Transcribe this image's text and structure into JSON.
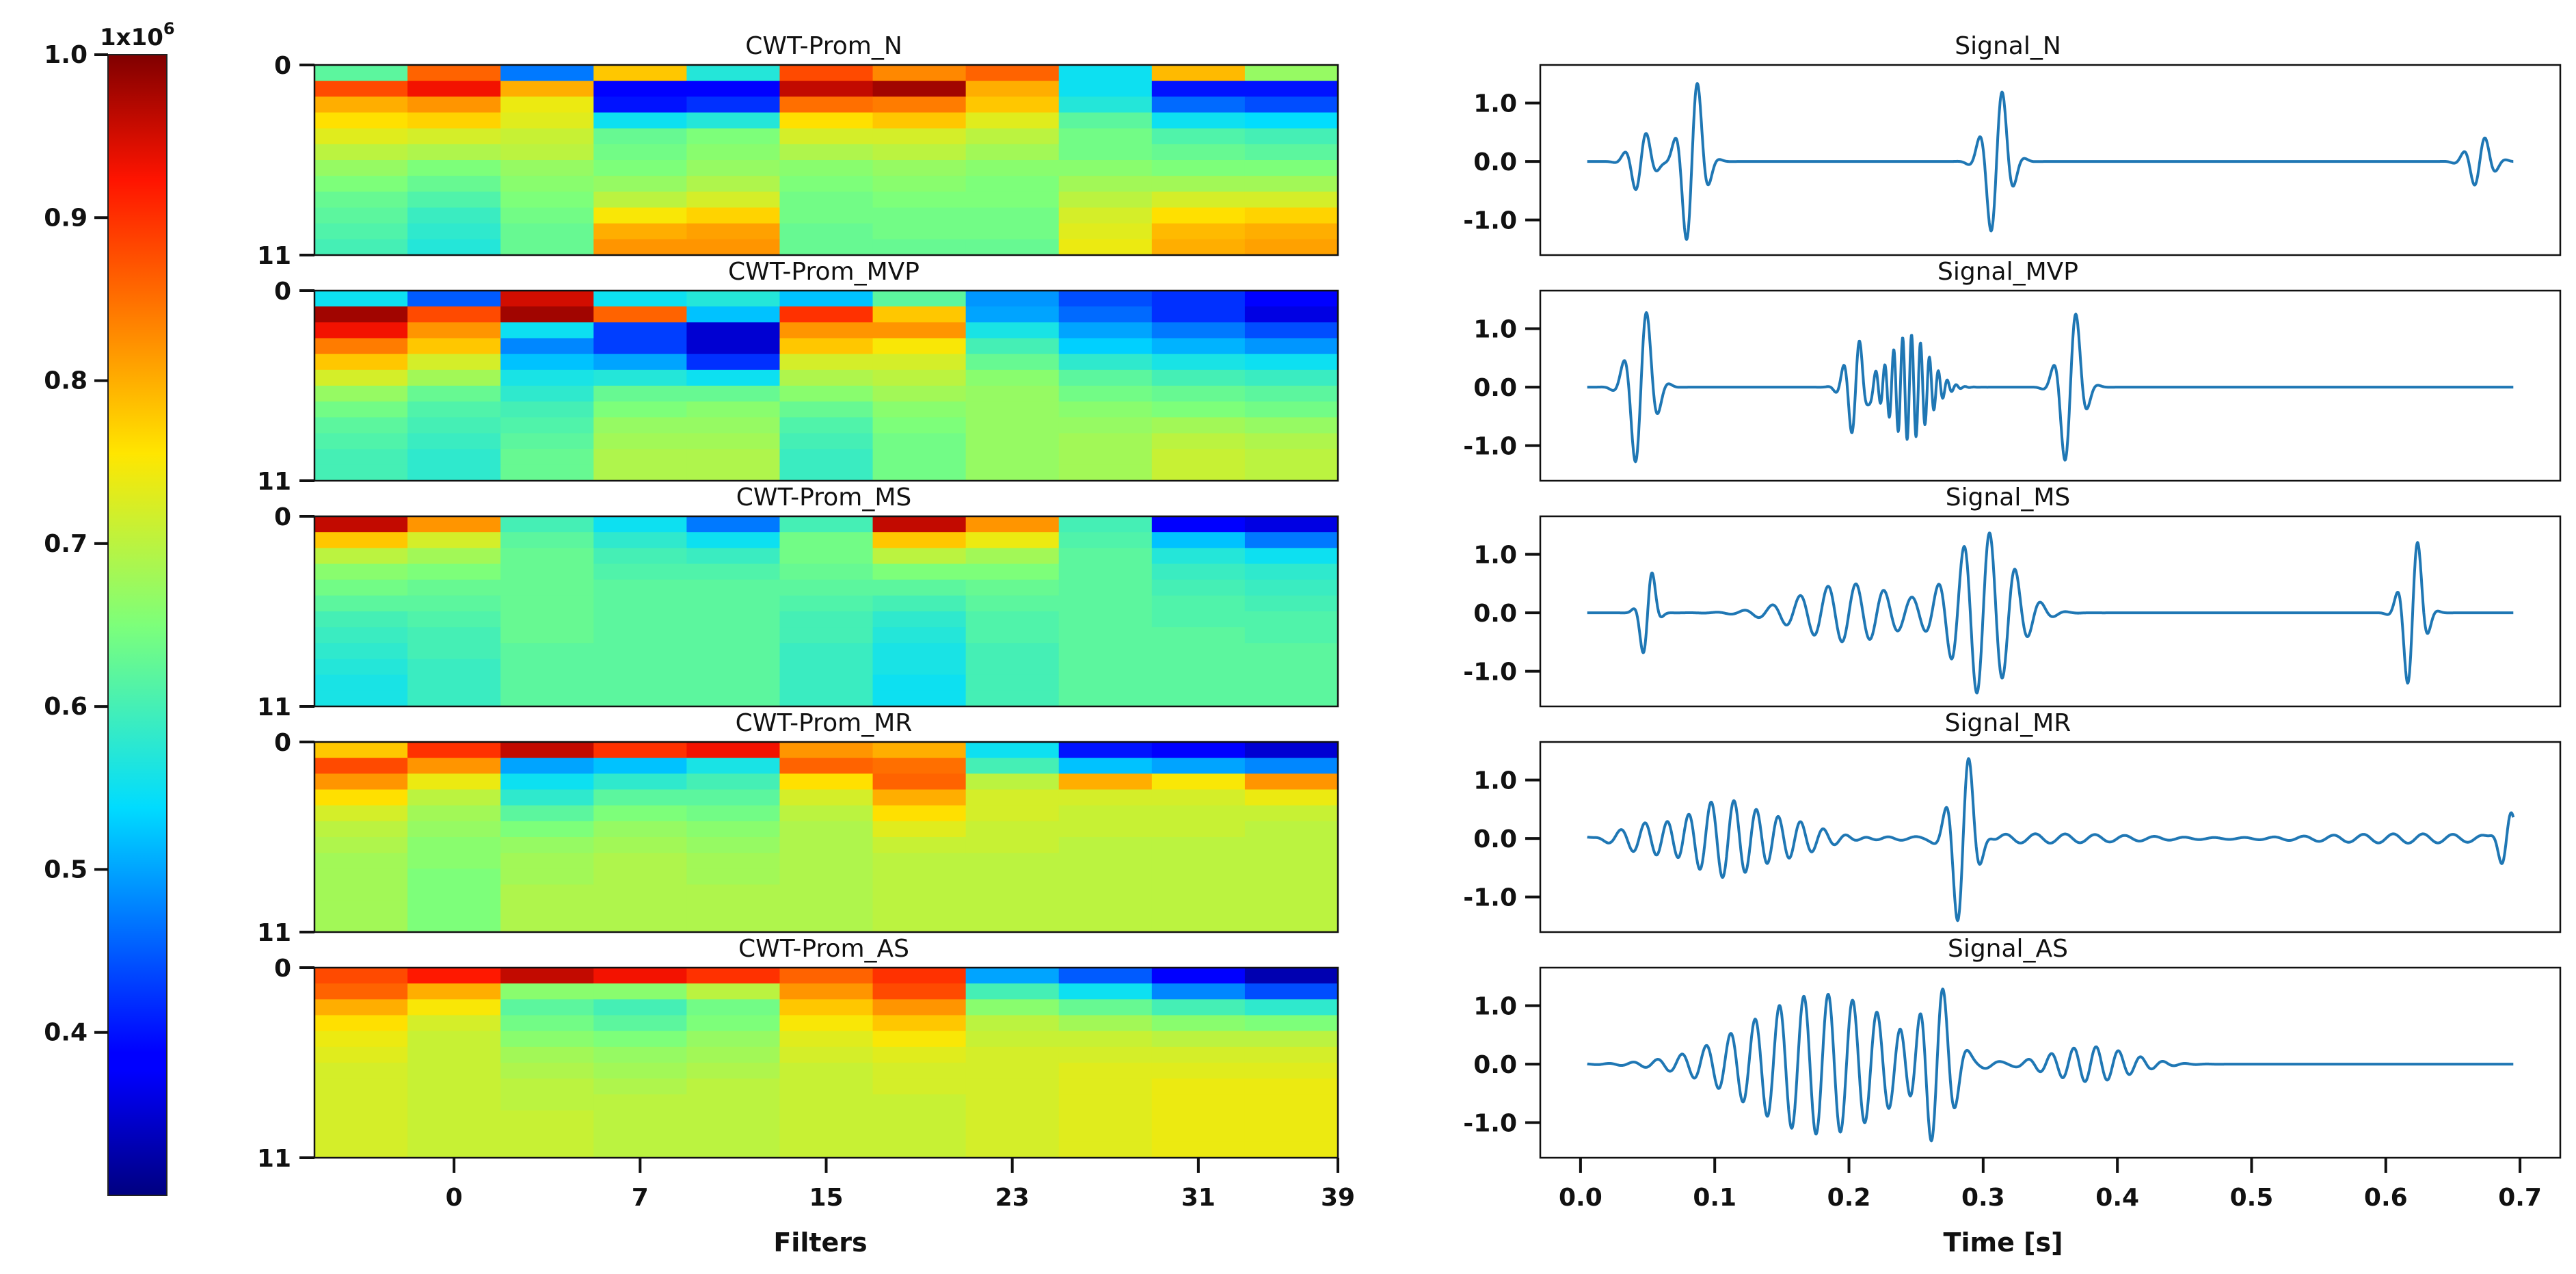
{
  "chart_data": {
    "type": "heatmap",
    "colormap": "jet",
    "colorbar": {
      "min": 0.3,
      "max": 1.0,
      "ticks": [
        "1.0",
        "0.9",
        "0.8",
        "0.7",
        "0.6",
        "0.5",
        "0.4"
      ],
      "tick_values": [
        1.0,
        0.9,
        0.8,
        0.7,
        0.6,
        0.5,
        0.4
      ],
      "multiplier": "1x10",
      "exponent": "6"
    },
    "heatmaps": {
      "xlabel": "Filters",
      "xticks": [
        "0",
        "7",
        "15",
        "23",
        "31",
        "39"
      ],
      "xtick_positions": [
        1.5,
        3.5,
        5.5,
        7.5,
        9.5,
        11.0
      ],
      "yticks": [
        "0",
        "11"
      ],
      "rows": 12,
      "cols": 11,
      "panels": [
        {
          "title": "CWT-Prom_N",
          "values": [
            [
              0.62,
              0.86,
              0.47,
              0.78,
              0.57,
              0.88,
              0.83,
              0.86,
              0.55,
              0.79,
              0.67
            ],
            [
              0.88,
              0.93,
              0.8,
              0.38,
              0.38,
              0.96,
              0.98,
              0.8,
              0.55,
              0.4,
              0.4
            ],
            [
              0.8,
              0.82,
              0.74,
              0.4,
              0.42,
              0.85,
              0.84,
              0.78,
              0.57,
              0.46,
              0.44
            ],
            [
              0.76,
              0.77,
              0.73,
              0.55,
              0.57,
              0.76,
              0.78,
              0.73,
              0.62,
              0.55,
              0.54
            ],
            [
              0.73,
              0.72,
              0.71,
              0.63,
              0.65,
              0.72,
              0.72,
              0.7,
              0.64,
              0.61,
              0.6
            ],
            [
              0.7,
              0.69,
              0.7,
              0.64,
              0.66,
              0.69,
              0.7,
              0.68,
              0.64,
              0.63,
              0.62
            ],
            [
              0.67,
              0.65,
              0.67,
              0.65,
              0.67,
              0.66,
              0.67,
              0.66,
              0.66,
              0.65,
              0.65
            ],
            [
              0.65,
              0.63,
              0.66,
              0.67,
              0.69,
              0.65,
              0.66,
              0.65,
              0.68,
              0.68,
              0.68
            ],
            [
              0.63,
              0.61,
              0.65,
              0.7,
              0.72,
              0.64,
              0.65,
              0.65,
              0.7,
              0.72,
              0.72
            ],
            [
              0.62,
              0.59,
              0.64,
              0.75,
              0.77,
              0.64,
              0.64,
              0.64,
              0.72,
              0.76,
              0.77
            ],
            [
              0.61,
              0.58,
              0.63,
              0.8,
              0.81,
              0.63,
              0.64,
              0.64,
              0.73,
              0.79,
              0.8
            ],
            [
              0.6,
              0.57,
              0.63,
              0.82,
              0.82,
              0.63,
              0.63,
              0.63,
              0.74,
              0.8,
              0.81
            ]
          ]
        },
        {
          "title": "CWT-Prom_MVP",
          "values": [
            [
              0.55,
              0.45,
              0.95,
              0.55,
              0.57,
              0.52,
              0.62,
              0.49,
              0.44,
              0.42,
              0.38
            ],
            [
              0.98,
              0.88,
              0.98,
              0.86,
              0.52,
              0.9,
              0.78,
              0.5,
              0.46,
              0.42,
              0.36
            ],
            [
              0.93,
              0.82,
              0.55,
              0.43,
              0.35,
              0.82,
              0.82,
              0.56,
              0.5,
              0.47,
              0.44
            ],
            [
              0.84,
              0.78,
              0.48,
              0.43,
              0.35,
              0.78,
              0.75,
              0.6,
              0.53,
              0.51,
              0.49
            ],
            [
              0.78,
              0.72,
              0.52,
              0.5,
              0.42,
              0.72,
              0.72,
              0.63,
              0.58,
              0.56,
              0.55
            ],
            [
              0.72,
              0.68,
              0.56,
              0.57,
              0.55,
              0.69,
              0.7,
              0.66,
              0.62,
              0.6,
              0.59
            ],
            [
              0.67,
              0.63,
              0.58,
              0.63,
              0.63,
              0.66,
              0.68,
              0.67,
              0.64,
              0.63,
              0.62
            ],
            [
              0.64,
              0.61,
              0.6,
              0.65,
              0.66,
              0.63,
              0.66,
              0.67,
              0.66,
              0.65,
              0.64
            ],
            [
              0.62,
              0.6,
              0.61,
              0.67,
              0.67,
              0.61,
              0.65,
              0.67,
              0.67,
              0.68,
              0.67
            ],
            [
              0.61,
              0.59,
              0.62,
              0.68,
              0.68,
              0.6,
              0.64,
              0.67,
              0.68,
              0.7,
              0.69
            ],
            [
              0.6,
              0.58,
              0.63,
              0.69,
              0.69,
              0.59,
              0.64,
              0.67,
              0.68,
              0.71,
              0.7
            ],
            [
              0.6,
              0.58,
              0.63,
              0.69,
              0.69,
              0.59,
              0.64,
              0.67,
              0.68,
              0.71,
              0.7
            ]
          ]
        },
        {
          "title": "CWT-Prom_MS",
          "values": [
            [
              0.96,
              0.82,
              0.6,
              0.55,
              0.47,
              0.6,
              0.96,
              0.82,
              0.6,
              0.38,
              0.36
            ],
            [
              0.78,
              0.72,
              0.62,
              0.58,
              0.55,
              0.64,
              0.78,
              0.74,
              0.61,
              0.52,
              0.47
            ],
            [
              0.7,
              0.68,
              0.63,
              0.6,
              0.59,
              0.64,
              0.7,
              0.68,
              0.62,
              0.57,
              0.55
            ],
            [
              0.66,
              0.65,
              0.63,
              0.61,
              0.61,
              0.63,
              0.65,
              0.65,
              0.62,
              0.59,
              0.58
            ],
            [
              0.64,
              0.63,
              0.63,
              0.62,
              0.62,
              0.62,
              0.62,
              0.63,
              0.62,
              0.6,
              0.59
            ],
            [
              0.62,
              0.62,
              0.63,
              0.62,
              0.62,
              0.61,
              0.6,
              0.62,
              0.62,
              0.61,
              0.6
            ],
            [
              0.6,
              0.61,
              0.63,
              0.62,
              0.62,
              0.6,
              0.58,
              0.61,
              0.62,
              0.61,
              0.61
            ],
            [
              0.59,
              0.6,
              0.63,
              0.62,
              0.62,
              0.6,
              0.57,
              0.61,
              0.62,
              0.62,
              0.61
            ],
            [
              0.58,
              0.6,
              0.62,
              0.62,
              0.62,
              0.59,
              0.56,
              0.6,
              0.62,
              0.62,
              0.62
            ],
            [
              0.57,
              0.59,
              0.62,
              0.62,
              0.62,
              0.59,
              0.56,
              0.6,
              0.62,
              0.62,
              0.62
            ],
            [
              0.56,
              0.59,
              0.62,
              0.62,
              0.62,
              0.59,
              0.55,
              0.6,
              0.62,
              0.62,
              0.62
            ],
            [
              0.56,
              0.59,
              0.62,
              0.62,
              0.62,
              0.59,
              0.55,
              0.6,
              0.62,
              0.62,
              0.62
            ]
          ]
        },
        {
          "title": "CWT-Prom_MR",
          "values": [
            [
              0.78,
              0.9,
              0.96,
              0.9,
              0.93,
              0.82,
              0.8,
              0.55,
              0.4,
              0.38,
              0.35
            ],
            [
              0.88,
              0.82,
              0.5,
              0.52,
              0.56,
              0.86,
              0.85,
              0.6,
              0.52,
              0.5,
              0.48
            ],
            [
              0.82,
              0.74,
              0.55,
              0.58,
              0.6,
              0.76,
              0.86,
              0.7,
              0.8,
              0.75,
              0.82
            ],
            [
              0.76,
              0.7,
              0.58,
              0.62,
              0.62,
              0.72,
              0.8,
              0.72,
              0.72,
              0.72,
              0.74
            ],
            [
              0.72,
              0.68,
              0.62,
              0.65,
              0.64,
              0.7,
              0.76,
              0.72,
              0.71,
              0.71,
              0.71
            ],
            [
              0.7,
              0.67,
              0.65,
              0.67,
              0.66,
              0.69,
              0.73,
              0.71,
              0.71,
              0.71,
              0.7
            ],
            [
              0.69,
              0.66,
              0.67,
              0.68,
              0.67,
              0.69,
              0.71,
              0.71,
              0.7,
              0.7,
              0.7
            ],
            [
              0.68,
              0.66,
              0.68,
              0.69,
              0.68,
              0.69,
              0.7,
              0.7,
              0.7,
              0.7,
              0.7
            ],
            [
              0.68,
              0.65,
              0.68,
              0.69,
              0.68,
              0.69,
              0.7,
              0.7,
              0.7,
              0.7,
              0.7
            ],
            [
              0.68,
              0.65,
              0.69,
              0.69,
              0.69,
              0.69,
              0.7,
              0.7,
              0.7,
              0.7,
              0.7
            ],
            [
              0.68,
              0.65,
              0.69,
              0.69,
              0.69,
              0.69,
              0.7,
              0.7,
              0.7,
              0.7,
              0.7
            ],
            [
              0.68,
              0.65,
              0.69,
              0.69,
              0.69,
              0.69,
              0.7,
              0.7,
              0.7,
              0.7,
              0.7
            ]
          ]
        },
        {
          "title": "CWT-Prom_AS",
          "values": [
            [
              0.88,
              0.92,
              0.96,
              0.93,
              0.9,
              0.86,
              0.9,
              0.5,
              0.45,
              0.38,
              0.33
            ],
            [
              0.86,
              0.8,
              0.66,
              0.66,
              0.7,
              0.82,
              0.88,
              0.6,
              0.55,
              0.48,
              0.44
            ],
            [
              0.8,
              0.75,
              0.62,
              0.6,
              0.64,
              0.78,
              0.82,
              0.66,
              0.63,
              0.6,
              0.58
            ],
            [
              0.76,
              0.72,
              0.64,
              0.62,
              0.65,
              0.75,
              0.78,
              0.7,
              0.68,
              0.66,
              0.65
            ],
            [
              0.74,
              0.71,
              0.66,
              0.65,
              0.67,
              0.73,
              0.75,
              0.71,
              0.71,
              0.7,
              0.7
            ],
            [
              0.73,
              0.71,
              0.68,
              0.67,
              0.68,
              0.72,
              0.73,
              0.72,
              0.72,
              0.72,
              0.72
            ],
            [
              0.72,
              0.71,
              0.69,
              0.68,
              0.69,
              0.71,
              0.72,
              0.72,
              0.73,
              0.73,
              0.73
            ],
            [
              0.72,
              0.71,
              0.7,
              0.69,
              0.7,
              0.71,
              0.72,
              0.72,
              0.73,
              0.74,
              0.74
            ],
            [
              0.72,
              0.71,
              0.7,
              0.7,
              0.7,
              0.71,
              0.71,
              0.72,
              0.73,
              0.74,
              0.74
            ],
            [
              0.72,
              0.71,
              0.71,
              0.7,
              0.7,
              0.71,
              0.71,
              0.72,
              0.73,
              0.74,
              0.74
            ],
            [
              0.72,
              0.71,
              0.71,
              0.7,
              0.7,
              0.71,
              0.71,
              0.72,
              0.73,
              0.74,
              0.74
            ],
            [
              0.72,
              0.71,
              0.71,
              0.7,
              0.7,
              0.71,
              0.71,
              0.72,
              0.73,
              0.74,
              0.74
            ]
          ]
        }
      ]
    },
    "signals": {
      "type": "line",
      "xlabel": "Time [s]",
      "xlim": [
        -0.03,
        0.73
      ],
      "ylim": [
        -1.6,
        1.65
      ],
      "xticks": [
        "0.0",
        "0.1",
        "0.2",
        "0.3",
        "0.4",
        "0.5",
        "0.6",
        "0.7"
      ],
      "xtick_values": [
        0.0,
        0.1,
        0.2,
        0.3,
        0.4,
        0.5,
        0.6,
        0.7
      ],
      "yticks": [
        "1.0",
        "0.0",
        "-1.0"
      ],
      "ytick_values": [
        1.0,
        0.0,
        -1.0
      ],
      "color": "#1f77b4",
      "t_range": [
        0.005,
        0.695
      ],
      "panels": [
        {
          "title": "Signal_N",
          "bursts": [
            {
              "center": 0.045,
              "amp": 0.55,
              "width": 0.011,
              "freq": 58
            },
            {
              "center": 0.083,
              "amp": 1.55,
              "width": 0.011,
              "freq": 55
            },
            {
              "center": 0.31,
              "amp": 1.35,
              "width": 0.012,
              "freq": 55
            },
            {
              "center": 0.67,
              "amp": 0.45,
              "width": 0.012,
              "freq": 60
            }
          ],
          "noise": 0.0
        },
        {
          "title": "Signal_MVP",
          "bursts": [
            {
              "center": 0.045,
              "amp": 1.45,
              "width": 0.012,
              "freq": 55
            },
            {
              "center": 0.205,
              "amp": 0.85,
              "width": 0.01,
              "freq": 80
            },
            {
              "center": 0.245,
              "amp": 0.9,
              "width": 0.02,
              "freq": 150
            },
            {
              "center": 0.365,
              "amp": 1.45,
              "width": 0.011,
              "freq": 55
            }
          ],
          "noise": 0.0
        },
        {
          "title": "Signal_MS",
          "bursts": [
            {
              "center": 0.05,
              "amp": 0.9,
              "width": 0.007,
              "freq": 60
            },
            {
              "center": 0.2,
              "amp": 0.5,
              "width": 0.05,
              "freq": 48
            },
            {
              "center": 0.3,
              "amp": 1.4,
              "width": 0.03,
              "freq": 52
            },
            {
              "center": 0.62,
              "amp": 1.4,
              "width": 0.01,
              "freq": 60
            }
          ],
          "noise": 0.0
        },
        {
          "title": "Signal_MR",
          "bursts": [
            {
              "center": 0.11,
              "amp": 0.6,
              "width": 0.06,
              "freq": 60
            },
            {
              "center": 0.285,
              "amp": 1.55,
              "width": 0.012,
              "freq": 55
            },
            {
              "center": 0.69,
              "amp": 0.5,
              "width": 0.008,
              "freq": 60
            }
          ],
          "noise": 0.08
        },
        {
          "title": "Signal_AS",
          "bursts": [
            {
              "center": 0.18,
              "amp": 1.2,
              "width": 0.075,
              "freq": 55
            },
            {
              "center": 0.265,
              "amp": 1.5,
              "width": 0.018,
              "freq": 55
            },
            {
              "center": 0.38,
              "amp": 0.3,
              "width": 0.04,
              "freq": 60
            }
          ],
          "noise": 0.0
        }
      ]
    }
  }
}
